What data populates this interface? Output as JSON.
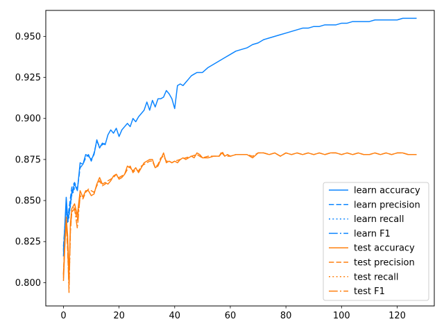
{
  "chart_data": {
    "type": "line",
    "title": "",
    "xlabel": "",
    "ylabel": "",
    "xlim": [
      -6.35,
      133.35
    ],
    "ylim": [
      0.7858,
      0.9658
    ],
    "xticks": [
      0,
      20,
      40,
      60,
      80,
      100,
      120
    ],
    "xtick_labels": [
      "0",
      "20",
      "40",
      "60",
      "80",
      "100",
      "120"
    ],
    "yticks": [
      0.8,
      0.825,
      0.85,
      0.875,
      0.9,
      0.925,
      0.95
    ],
    "ytick_labels": [
      "0.800",
      "0.825",
      "0.850",
      "0.875",
      "0.900",
      "0.925",
      "0.950"
    ],
    "grid": false,
    "legend_position": "lower-right",
    "colors": {
      "learn": "#1f77b4",
      "learn_bright": "#0a84ff",
      "test": "#ff7f0e"
    },
    "series": [
      {
        "name": "learn accuracy",
        "color": "#0a84ff",
        "dash": "solid",
        "x": [
          0,
          0.5,
          1,
          1.5,
          2,
          3,
          4,
          5,
          6,
          7,
          8,
          9,
          10,
          11,
          12,
          13,
          14,
          15,
          16,
          17,
          18,
          19,
          20,
          21,
          22,
          23,
          24,
          25,
          26,
          27,
          28,
          29,
          30,
          31,
          32,
          33,
          34,
          35,
          36,
          37,
          38,
          39,
          40,
          41,
          42,
          43,
          44,
          45,
          46,
          47,
          48,
          50,
          52,
          54,
          56,
          58,
          60,
          62,
          64,
          66,
          68,
          70,
          72,
          74,
          76,
          78,
          80,
          82,
          84,
          86,
          88,
          90,
          92,
          94,
          96,
          98,
          100,
          102,
          104,
          106,
          108,
          110,
          112,
          114,
          116,
          118,
          120,
          122,
          124,
          126,
          127
        ],
        "y": [
          0.816,
          0.835,
          0.852,
          0.84,
          0.842,
          0.855,
          0.86,
          0.856,
          0.873,
          0.872,
          0.878,
          0.877,
          0.875,
          0.878,
          0.887,
          0.882,
          0.885,
          0.884,
          0.89,
          0.893,
          0.891,
          0.894,
          0.889,
          0.893,
          0.895,
          0.897,
          0.895,
          0.9,
          0.898,
          0.901,
          0.903,
          0.905,
          0.91,
          0.905,
          0.911,
          0.907,
          0.912,
          0.912,
          0.913,
          0.917,
          0.915,
          0.912,
          0.906,
          0.92,
          0.921,
          0.92,
          0.922,
          0.924,
          0.926,
          0.927,
          0.928,
          0.928,
          0.931,
          0.933,
          0.935,
          0.937,
          0.939,
          0.941,
          0.942,
          0.943,
          0.945,
          0.946,
          0.948,
          0.949,
          0.95,
          0.951,
          0.952,
          0.953,
          0.954,
          0.955,
          0.955,
          0.956,
          0.956,
          0.957,
          0.957,
          0.957,
          0.958,
          0.958,
          0.959,
          0.959,
          0.959,
          0.959,
          0.96,
          0.96,
          0.96,
          0.96,
          0.96,
          0.961,
          0.961,
          0.961,
          0.961
        ]
      },
      {
        "name": "learn precision",
        "color": "#0a84ff",
        "dash": "dashed",
        "x": [
          0,
          0.5,
          1,
          1.5,
          2,
          3,
          4,
          5,
          6,
          7,
          8,
          9,
          10,
          11,
          12,
          13,
          14,
          15
        ],
        "y": [
          0.822,
          0.834,
          0.848,
          0.838,
          0.845,
          0.858,
          0.861,
          0.857,
          0.87,
          0.872,
          0.876,
          0.878,
          0.874,
          0.879,
          0.886,
          0.883,
          0.884,
          0.885
        ]
      },
      {
        "name": "learn recall",
        "color": "#0a84ff",
        "dash": "dotted",
        "x": [
          0,
          0.5,
          1,
          1.5,
          2,
          3,
          4
        ],
        "y": [
          0.819,
          0.832,
          0.846,
          0.836,
          0.84,
          0.853,
          0.857
        ]
      },
      {
        "name": "learn F1",
        "color": "#0a84ff",
        "dash": "dashdot",
        "x": [
          0,
          0.5,
          1,
          1.5,
          2,
          3,
          4
        ],
        "y": [
          0.82,
          0.833,
          0.847,
          0.837,
          0.841,
          0.854,
          0.858
        ]
      },
      {
        "name": "test accuracy",
        "color": "#ff7f0e",
        "dash": "solid",
        "x": [
          0,
          0.5,
          1,
          1.5,
          2,
          2.5,
          3,
          4,
          5,
          6,
          7,
          8,
          9,
          10,
          11,
          12,
          13,
          14,
          15,
          16,
          17,
          18,
          19,
          20,
          21,
          22,
          23,
          24,
          25,
          26,
          27,
          28,
          29,
          30,
          31,
          32,
          33,
          34,
          35,
          36,
          37,
          38,
          39,
          40,
          41,
          42,
          43,
          44,
          45,
          46,
          47,
          48,
          49,
          50,
          52,
          54,
          56,
          57,
          58,
          59,
          60,
          62,
          64,
          66,
          68,
          70,
          72,
          74,
          76,
          78,
          80,
          82,
          84,
          86,
          88,
          90,
          92,
          94,
          96,
          98,
          100,
          102,
          104,
          106,
          108,
          110,
          112,
          114,
          116,
          118,
          120,
          122,
          124,
          126,
          127
        ],
        "y": [
          0.801,
          0.822,
          0.84,
          0.829,
          0.803,
          0.836,
          0.845,
          0.848,
          0.841,
          0.856,
          0.852,
          0.856,
          0.856,
          0.853,
          0.854,
          0.86,
          0.864,
          0.86,
          0.861,
          0.86,
          0.862,
          0.865,
          0.866,
          0.863,
          0.864,
          0.866,
          0.871,
          0.87,
          0.868,
          0.87,
          0.867,
          0.87,
          0.873,
          0.874,
          0.875,
          0.875,
          0.87,
          0.871,
          0.875,
          0.879,
          0.873,
          0.874,
          0.873,
          0.874,
          0.873,
          0.875,
          0.876,
          0.875,
          0.876,
          0.877,
          0.876,
          0.879,
          0.878,
          0.876,
          0.876,
          0.877,
          0.877,
          0.879,
          0.877,
          0.878,
          0.877,
          0.878,
          0.878,
          0.878,
          0.876,
          0.879,
          0.879,
          0.878,
          0.879,
          0.877,
          0.879,
          0.878,
          0.879,
          0.878,
          0.879,
          0.878,
          0.879,
          0.878,
          0.879,
          0.879,
          0.878,
          0.879,
          0.878,
          0.879,
          0.878,
          0.878,
          0.879,
          0.878,
          0.879,
          0.878,
          0.879,
          0.879,
          0.878,
          0.878,
          0.878
        ]
      },
      {
        "name": "test precision",
        "color": "#ff7f0e",
        "dash": "dashed",
        "x": [
          0,
          0.5,
          1,
          1.5,
          2,
          2.5,
          3,
          4,
          5,
          6,
          7,
          8,
          9,
          10,
          11,
          12,
          13,
          14,
          15,
          16,
          17,
          18,
          19,
          20,
          21,
          22,
          23,
          24,
          25,
          26,
          27,
          28,
          29,
          30,
          31,
          32,
          33,
          34,
          35,
          36,
          37,
          38,
          39,
          40,
          42,
          44,
          46,
          48,
          50,
          52,
          54,
          56,
          57,
          58,
          60,
          62,
          64,
          66,
          68,
          70,
          72,
          74,
          76,
          78,
          80,
          82,
          84,
          86,
          88,
          90,
          92,
          94,
          96,
          98,
          100,
          102,
          104,
          106,
          108,
          110,
          112,
          114,
          116,
          118,
          120,
          122,
          124,
          126,
          127
        ],
        "y": [
          0.805,
          0.827,
          0.836,
          0.82,
          0.797,
          0.831,
          0.843,
          0.845,
          0.838,
          0.853,
          0.851,
          0.855,
          0.857,
          0.856,
          0.855,
          0.859,
          0.862,
          0.859,
          0.86,
          0.862,
          0.863,
          0.864,
          0.866,
          0.864,
          0.865,
          0.866,
          0.869,
          0.871,
          0.867,
          0.869,
          0.868,
          0.871,
          0.872,
          0.873,
          0.874,
          0.874,
          0.87,
          0.872,
          0.876,
          0.877,
          0.874,
          0.874,
          0.873,
          0.874,
          0.875,
          0.876,
          0.877,
          0.878,
          0.876,
          0.877,
          0.877,
          0.877,
          0.88,
          0.877,
          0.877,
          0.878,
          0.878,
          0.878,
          0.877,
          0.879,
          0.879,
          0.878,
          0.879,
          0.877,
          0.879,
          0.878,
          0.879,
          0.878,
          0.879,
          0.878,
          0.879,
          0.878,
          0.879,
          0.879,
          0.878,
          0.879,
          0.878,
          0.879,
          0.878,
          0.878,
          0.879,
          0.878,
          0.879,
          0.878,
          0.879,
          0.879,
          0.878,
          0.878,
          0.878
        ]
      },
      {
        "name": "test recall",
        "color": "#ff7f0e",
        "dash": "dotted",
        "x": [
          0,
          0.5,
          1,
          1.5,
          2,
          2.5,
          3,
          4,
          5,
          6
        ],
        "y": [
          0.803,
          0.824,
          0.838,
          0.826,
          0.8,
          0.834,
          0.844,
          0.846,
          0.839,
          0.854
        ]
      },
      {
        "name": "test F1",
        "color": "#ff7f0e",
        "dash": "dashdot",
        "x": [
          0,
          0.5,
          1,
          1.5,
          2,
          2.5,
          3,
          4,
          5,
          6
        ],
        "y": [
          0.804,
          0.825,
          0.837,
          0.823,
          0.794,
          0.833,
          0.843,
          0.845,
          0.833,
          0.853
        ]
      }
    ]
  }
}
